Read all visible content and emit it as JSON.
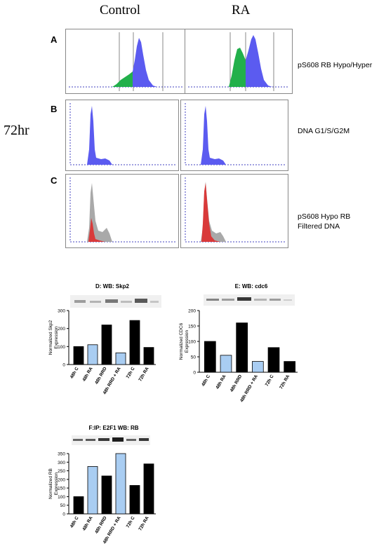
{
  "columns": {
    "control": "Control",
    "ra": "RA"
  },
  "time_label": "72hr",
  "rows": [
    {
      "letter": "A",
      "label_lines": [
        "pS608 RB Hypo/Hyper"
      ]
    },
    {
      "letter": "B",
      "label_lines": [
        "DNA G1/S/G2M"
      ]
    },
    {
      "letter": "C",
      "label_lines": [
        "pS608 Hypo RB",
        "Filtered DNA"
      ]
    }
  ],
  "colors": {
    "blue": "#5b5bf0",
    "green": "#22b04b",
    "red": "#d93a3a",
    "gray": "#a9a9a9",
    "bar_black": "#000000",
    "bar_blue": "#a9cdf2"
  },
  "chart_data": [
    {
      "type": "bar",
      "title": "D: WB: Skp2",
      "ylabel": "Normalized Skp2 Expression",
      "categories": [
        "48h C",
        "48h RA",
        "48h RRD",
        "48h RRD + RA",
        "72h C",
        "72h RA"
      ],
      "values": [
        100,
        110,
        220,
        65,
        245,
        95
      ],
      "bar_colors": [
        "black",
        "blue",
        "black",
        "blue",
        "black",
        "black"
      ],
      "ylim": [
        0,
        300
      ],
      "yticks": [
        0,
        100,
        200,
        300
      ]
    },
    {
      "type": "bar",
      "title": "E: WB: cdc6",
      "ylabel": "Normalized CDC6 Expression",
      "categories": [
        "48h C",
        "48h RA",
        "48h RRD",
        "48h RRD + RA",
        "72h C",
        "72h RA"
      ],
      "values": [
        100,
        55,
        160,
        35,
        80,
        35
      ],
      "bar_colors": [
        "black",
        "blue",
        "black",
        "blue",
        "black",
        "black"
      ],
      "ylim": [
        0,
        200
      ],
      "yticks": [
        0,
        50,
        100,
        150,
        200
      ]
    },
    {
      "type": "bar",
      "title": "F:IP: E2F1 WB: RB",
      "ylabel": "Normalized RB Expression",
      "categories": [
        "48h C",
        "48h RA",
        "48h RRD",
        "48h RRD + RA",
        "72h C",
        "72h RA"
      ],
      "values": [
        100,
        275,
        220,
        350,
        165,
        290
      ],
      "bar_colors": [
        "black",
        "blue",
        "black",
        "blue",
        "black",
        "black"
      ],
      "ylim": [
        0,
        350
      ],
      "yticks": [
        0,
        50,
        100,
        150,
        200,
        250,
        300,
        350
      ]
    }
  ]
}
